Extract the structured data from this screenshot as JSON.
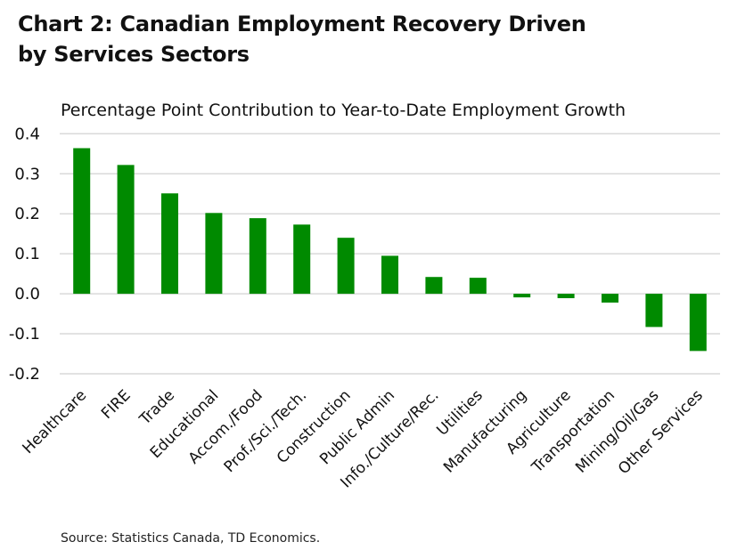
{
  "title_line1": "Chart 2: Canadian Employment Recovery Driven",
  "title_line2": "by Services Sectors",
  "source": "Source: Statistics Canada, TD Economics.",
  "chart_data": {
    "type": "bar",
    "title": "Chart 2: Canadian Employment Recovery Driven by Services Sectors",
    "subtitle": "Percentage Point Contribution to Year-to-Date Employment Growth",
    "xlabel": "",
    "ylabel": "",
    "ylim": [
      -0.2,
      0.4
    ],
    "yticks": [
      "0.4",
      "0.3",
      "0.2",
      "0.1",
      "0.0",
      "-0.1",
      "-0.2"
    ],
    "grid": true,
    "bar_color": "#008a00",
    "categories": [
      "Healthcare",
      "FIRE",
      "Trade",
      "Educational",
      "Accom./Food",
      "Prof./Sci./Tech.",
      "Construction",
      "Public Admin",
      "Info./Culture/Rec.",
      "Utilities",
      "Manufacturing",
      "Agriculture",
      "Transportation",
      "Mining/Oil/Gas",
      "Other Services"
    ],
    "values": [
      0.364,
      0.322,
      0.251,
      0.202,
      0.189,
      0.173,
      0.14,
      0.095,
      0.042,
      0.04,
      -0.009,
      -0.011,
      -0.022,
      -0.083,
      -0.143
    ]
  }
}
